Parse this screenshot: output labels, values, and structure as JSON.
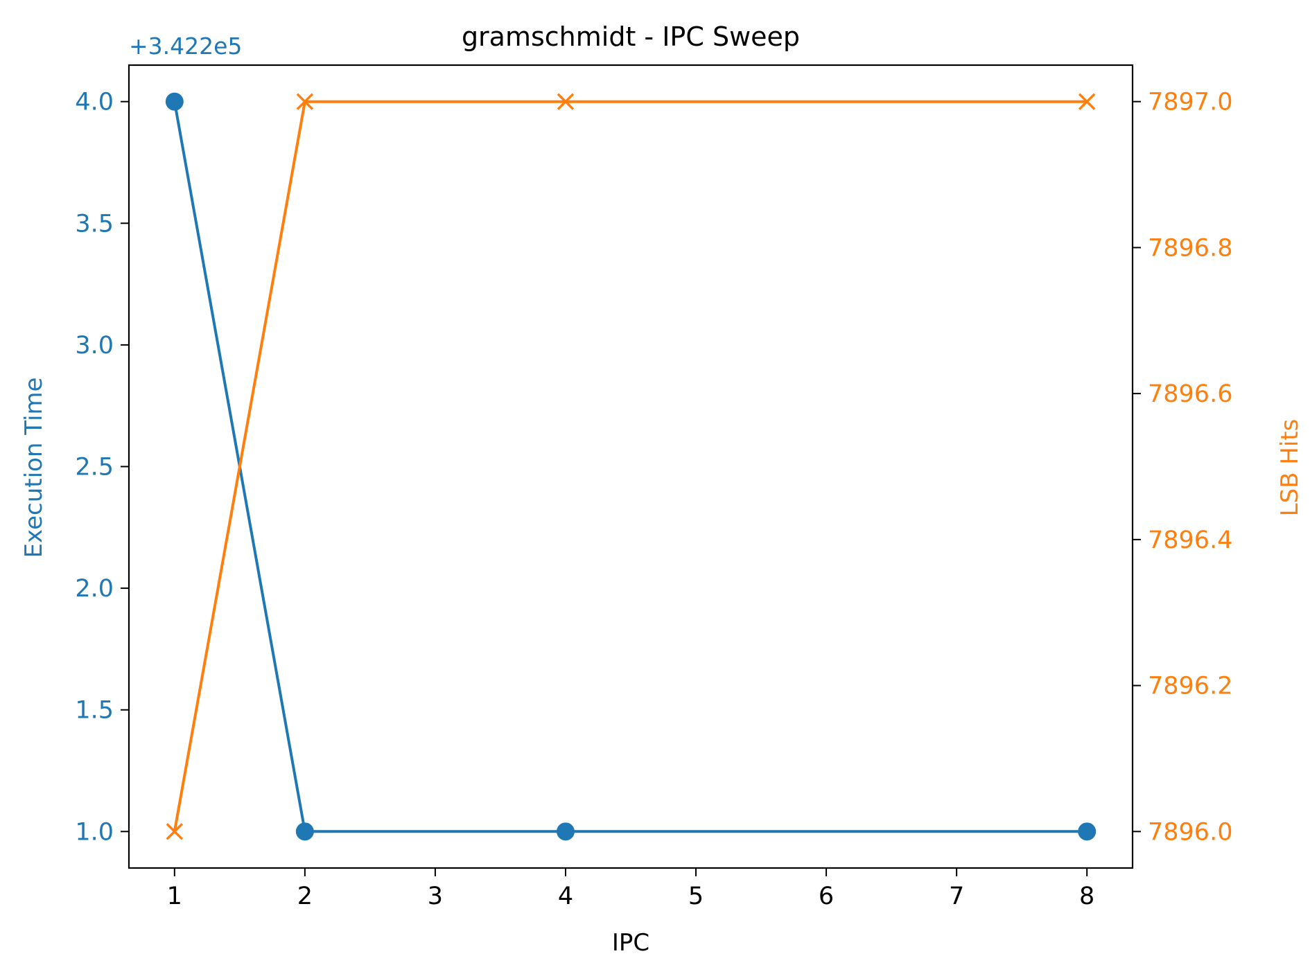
{
  "chart_data": {
    "type": "line",
    "title": "gramschmidt - IPC Sweep",
    "xlabel": "IPC",
    "xlim": [
      0.65,
      8.35
    ],
    "x_ticks": [
      1,
      2,
      3,
      4,
      5,
      6,
      7,
      8
    ],
    "grid": false,
    "y_left": {
      "label": "Execution Time",
      "offset_text": "+3.422e5",
      "lim": [
        0.85,
        4.15
      ],
      "ticks": [
        1.0,
        1.5,
        2.0,
        2.5,
        3.0,
        3.5,
        4.0
      ],
      "tick_labels": [
        "1.0",
        "1.5",
        "2.0",
        "2.5",
        "3.0",
        "3.5",
        "4.0"
      ],
      "color": "#1f77b4"
    },
    "y_right": {
      "label": "LSB Hits",
      "lim": [
        7895.95,
        7897.05
      ],
      "ticks": [
        7896.0,
        7896.2,
        7896.4,
        7896.6,
        7896.8,
        7897.0
      ],
      "tick_labels": [
        "7896.0",
        "7896.2",
        "7896.4",
        "7896.6",
        "7896.8",
        "7897.0"
      ],
      "color": "#ff7f0e"
    },
    "series": [
      {
        "axis": "left",
        "marker": "circle",
        "color": "#1f77b4",
        "x": [
          1,
          2,
          4,
          8
        ],
        "y": [
          4.0,
          1.0,
          1.0,
          1.0
        ]
      },
      {
        "axis": "right",
        "marker": "x",
        "color": "#ff7f0e",
        "x": [
          1,
          2,
          4,
          8
        ],
        "y": [
          7896.0,
          7897.0,
          7897.0,
          7897.0
        ]
      }
    ]
  }
}
